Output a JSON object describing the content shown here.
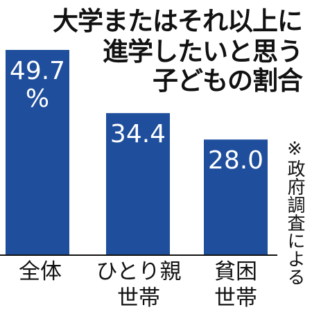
{
  "chart_data": {
    "type": "bar",
    "title_lines": [
      "大学またはそれ以上に",
      "進学したいと思う",
      "子どもの割合"
    ],
    "categories": [
      "全体",
      "ひとり親\n世帯",
      "貧困\n世帯"
    ],
    "values": [
      49.7,
      34.4,
      28.0
    ],
    "value_labels": [
      "49.7\n%",
      "34.4",
      "28.0"
    ],
    "bar_color": "#1f4e9c",
    "note": "※政府調査による"
  }
}
